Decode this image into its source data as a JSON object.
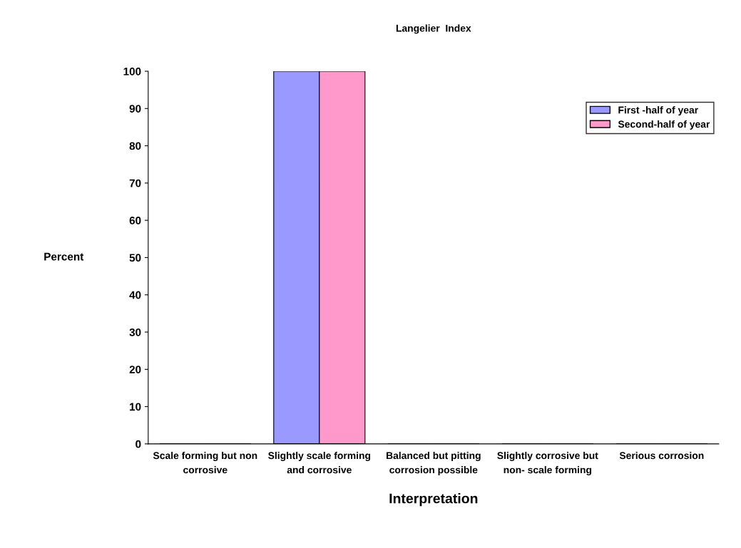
{
  "chart_data": {
    "type": "bar",
    "title": "Langelier  Index",
    "xlabel": "Interpretation",
    "ylabel": "Percent",
    "categories": [
      "Scale forming but non corrosive",
      "Slightly scale forming and corrosive",
      "Balanced but pitting corrosion possible",
      "Slightly corrosive but non- scale forming",
      "Serious corrosion"
    ],
    "series": [
      {
        "name": "First -half of year",
        "color": "#9999ff",
        "values": [
          0,
          100,
          0,
          0,
          0
        ]
      },
      {
        "name": "Second-half of year",
        "color": "#ff99cc",
        "values": [
          0,
          100,
          0,
          0,
          0
        ]
      }
    ],
    "ylim": [
      0,
      100
    ],
    "yticks": [
      0,
      10,
      20,
      30,
      40,
      50,
      60,
      70,
      80,
      90,
      100
    ],
    "grid": false,
    "legend": "top right"
  }
}
